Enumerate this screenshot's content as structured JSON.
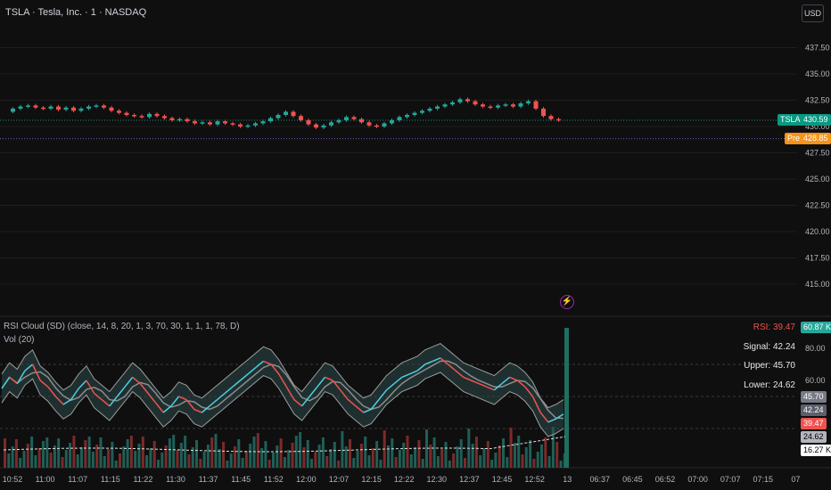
{
  "symbol": {
    "title": "TSLA · Tesla, Inc. · 1 · NASDAQ"
  },
  "currency_button": "USD",
  "price_axis": {
    "labels": [
      "437.50",
      "435.00",
      "432.50",
      "430.00",
      "427.50",
      "425.00",
      "422.50",
      "420.00",
      "417.50",
      "415.00"
    ],
    "values": [
      437.5,
      435.0,
      432.5,
      430.0,
      427.5,
      425.0,
      422.5,
      420.0,
      417.5,
      415.0
    ],
    "last_price_tag": "TSLA",
    "last_price": "430.59",
    "pre_tag": "Pre",
    "pre_price": "428.85"
  },
  "indicator": {
    "title": "RSI Cloud (SD) (close, 14, 8, 20, 1, 3, 70, 30, 1, 1, 1, 78, D)",
    "vol_title": "Vol (20)",
    "rsi_label": "RSI: 39.47",
    "signal_label": "Signal: 42.24",
    "upper_label": "Upper: 45.70",
    "lower_label": "Lower: 24.62",
    "axis_labels": [
      "80.00",
      "60.00"
    ],
    "badges": {
      "upper": "45.70",
      "signal": "42.24",
      "rsi": "39.47",
      "lower": "24.62",
      "vol": "16.27 K",
      "vol_top": "60.87 K"
    }
  },
  "time_axis": {
    "labels": [
      "10:52",
      "11:00",
      "11:07",
      "11:15",
      "11:22",
      "11:30",
      "11:37",
      "11:45",
      "11:52",
      "12:00",
      "12:07",
      "12:15",
      "12:22",
      "12:30",
      "12:37",
      "12:45",
      "12:52",
      "13",
      "06:37",
      "06:45",
      "06:52",
      "07:00",
      "07:07",
      "07:15",
      "07"
    ]
  },
  "colors": {
    "up": "#26a69a",
    "down": "#ef5350",
    "background": "#0f0f0f",
    "grid": "#1f1f1f",
    "pre": "#f7931a"
  },
  "price_series": [
    431.4,
    431.7,
    431.9,
    432.0,
    431.8,
    431.7,
    431.9,
    431.6,
    431.8,
    431.5,
    431.7,
    431.9,
    432.0,
    431.8,
    431.5,
    431.3,
    431.1,
    431.0,
    430.9,
    431.2,
    431.0,
    430.8,
    430.6,
    430.7,
    430.5,
    430.3,
    430.4,
    430.2,
    430.5,
    430.3,
    430.2,
    430.0,
    430.1,
    430.3,
    430.5,
    430.8,
    431.1,
    431.4,
    431.0,
    430.6,
    430.2,
    429.9,
    430.1,
    430.4,
    430.6,
    430.9,
    430.7,
    430.4,
    430.1,
    430.0,
    430.3,
    430.6,
    430.9,
    431.1,
    431.3,
    431.5,
    431.7,
    431.9,
    432.1,
    432.3,
    432.6,
    432.4,
    432.1,
    431.9,
    431.8,
    432.0,
    432.1,
    431.9,
    432.2,
    432.4,
    431.7,
    431.0,
    430.7,
    430.6
  ],
  "rsi_series": [
    55,
    62,
    58,
    66,
    70,
    60,
    56,
    50,
    45,
    48,
    55,
    60,
    52,
    48,
    44,
    50,
    56,
    62,
    58,
    52,
    46,
    40,
    44,
    50,
    48,
    42,
    40,
    44,
    48,
    52,
    56,
    60,
    64,
    68,
    72,
    70,
    64,
    56,
    48,
    44,
    50,
    56,
    62,
    60,
    54,
    48,
    44,
    40,
    42,
    48,
    54,
    58,
    62,
    64,
    66,
    70,
    72,
    74,
    70,
    66,
    62,
    60,
    58,
    56,
    54,
    58,
    62,
    60,
    56,
    50,
    40,
    34,
    36,
    39
  ]
}
